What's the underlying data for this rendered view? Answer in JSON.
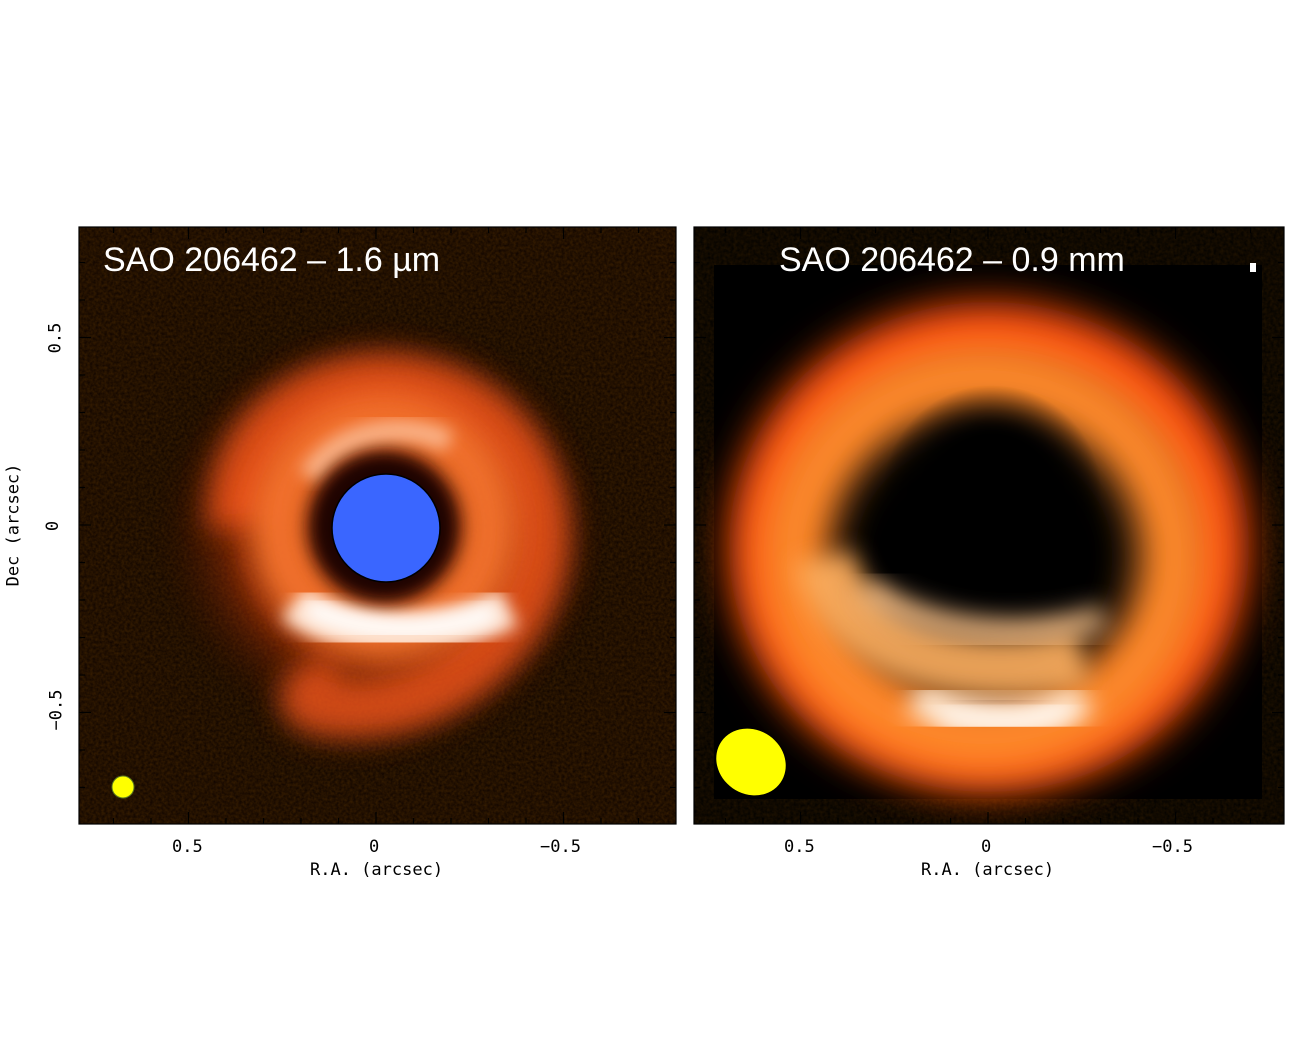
{
  "panels": [
    {
      "title": "SAO 206462 – 1.6 µm",
      "beam": "circular yellow beam",
      "star_mask": "blue coronagraph disk"
    },
    {
      "title": "SAO 206462 – 0.9 mm",
      "beam": "elliptical yellow beam"
    }
  ],
  "axes": {
    "x_title": "R.A. (arcsec)",
    "y_title": "Dec (arcsec)",
    "x_ticks": [
      "0.5",
      "0",
      "−0.5"
    ],
    "y_ticks": [
      "0.5",
      "0",
      "−0.5"
    ]
  },
  "colors": {
    "ring_hot": "#ff5a1a",
    "ring_bright": "#ffe4c8",
    "mask": "#3a66ff",
    "beam": "#ffff00"
  }
}
